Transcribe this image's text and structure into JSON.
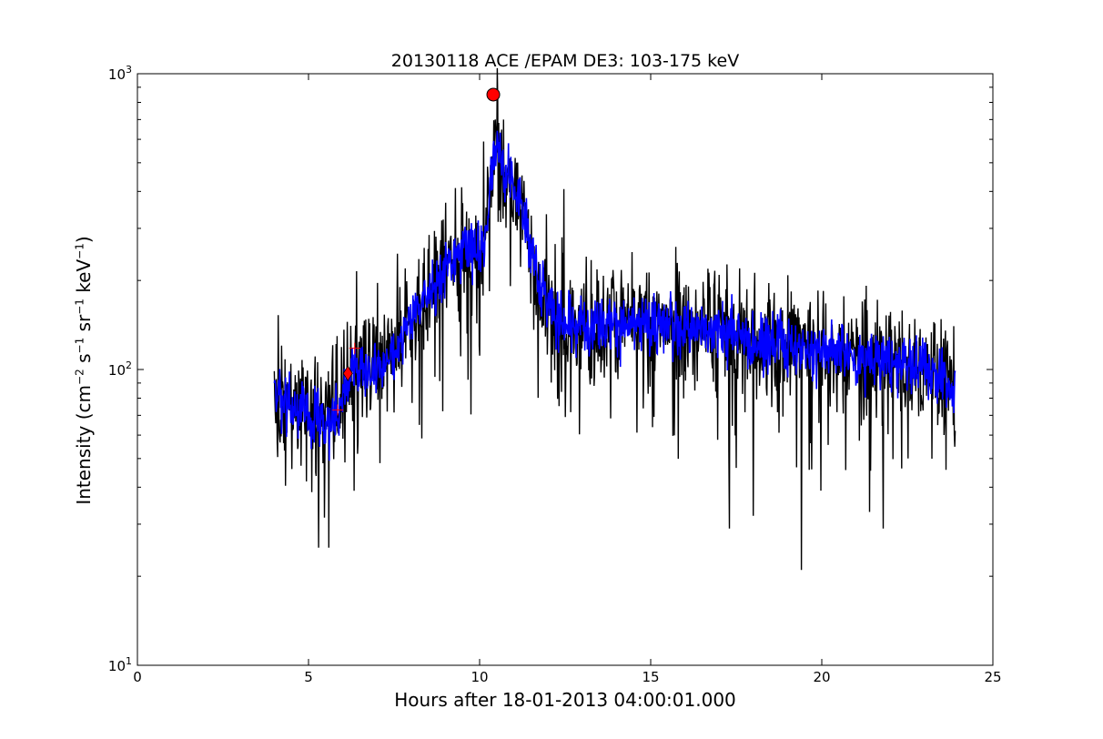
{
  "chart_data": {
    "type": "line",
    "title": "20130118 ACE /EPAM DE3: 103-175 keV",
    "xlabel": "Hours after 18-01-2013 04:00:01.000",
    "ylabel": {
      "base": "Intensity (cm",
      "exp1": "−2",
      "mid1": " s",
      "exp2": "−1",
      "mid2": " sr",
      "exp3": "−1",
      "mid3": " keV",
      "exp4": "−1",
      "end": ")"
    },
    "xlim": [
      0,
      25
    ],
    "ylim": [
      10,
      1000
    ],
    "yscale": "log",
    "grid": false,
    "x_ticks": [
      0,
      5,
      10,
      15,
      20,
      25
    ],
    "x_tick_labels": [
      "0",
      "5",
      "10",
      "15",
      "20",
      "25"
    ],
    "y_ticks": [
      10,
      100,
      1000
    ],
    "y_tick_labels": [
      {
        "base": "10",
        "exp": "1"
      },
      {
        "base": "10",
        "exp": "2"
      },
      {
        "base": "10",
        "exp": "3"
      }
    ],
    "x_range": [
      4.0,
      23.9
    ],
    "profile": [
      [
        4.0,
        80
      ],
      [
        4.5,
        75
      ],
      [
        5.0,
        70
      ],
      [
        5.5,
        68
      ],
      [
        5.9,
        72
      ],
      [
        6.1,
        88
      ],
      [
        6.4,
        105
      ],
      [
        6.8,
        100
      ],
      [
        7.2,
        100
      ],
      [
        7.6,
        112
      ],
      [
        8.0,
        150
      ],
      [
        8.5,
        180
      ],
      [
        9.0,
        220
      ],
      [
        9.5,
        260
      ],
      [
        9.9,
        250
      ],
      [
        10.1,
        260
      ],
      [
        10.3,
        420
      ],
      [
        10.5,
        580
      ],
      [
        10.8,
        440
      ],
      [
        11.2,
        380
      ],
      [
        11.5,
        250
      ],
      [
        11.8,
        190
      ],
      [
        12.2,
        145
      ],
      [
        13.0,
        140
      ],
      [
        14.0,
        142
      ],
      [
        15.0,
        142
      ],
      [
        16.0,
        140
      ],
      [
        17.0,
        135
      ],
      [
        18.0,
        125
      ],
      [
        19.0,
        120
      ],
      [
        20.0,
        118
      ],
      [
        21.0,
        110
      ],
      [
        22.0,
        105
      ],
      [
        23.0,
        100
      ],
      [
        23.5,
        95
      ],
      [
        23.9,
        85
      ]
    ],
    "series": [
      {
        "color": "#000000",
        "values": "raw intensity"
      },
      {
        "color": "#0000ff",
        "values": "smoothed intensity"
      }
    ],
    "markers": [
      {
        "shape": "circle",
        "color": "#ff0000",
        "x": 10.4,
        "y": 850
      },
      {
        "shape": "diamond",
        "color": "#ff0000",
        "x": 6.15,
        "y": 97
      },
      {
        "shape": "plus",
        "color": "#ff0000",
        "x": 5.85,
        "y": 73
      },
      {
        "shape": "plus",
        "color": "#ff0000",
        "x": 6.35,
        "y": 118
      }
    ]
  }
}
